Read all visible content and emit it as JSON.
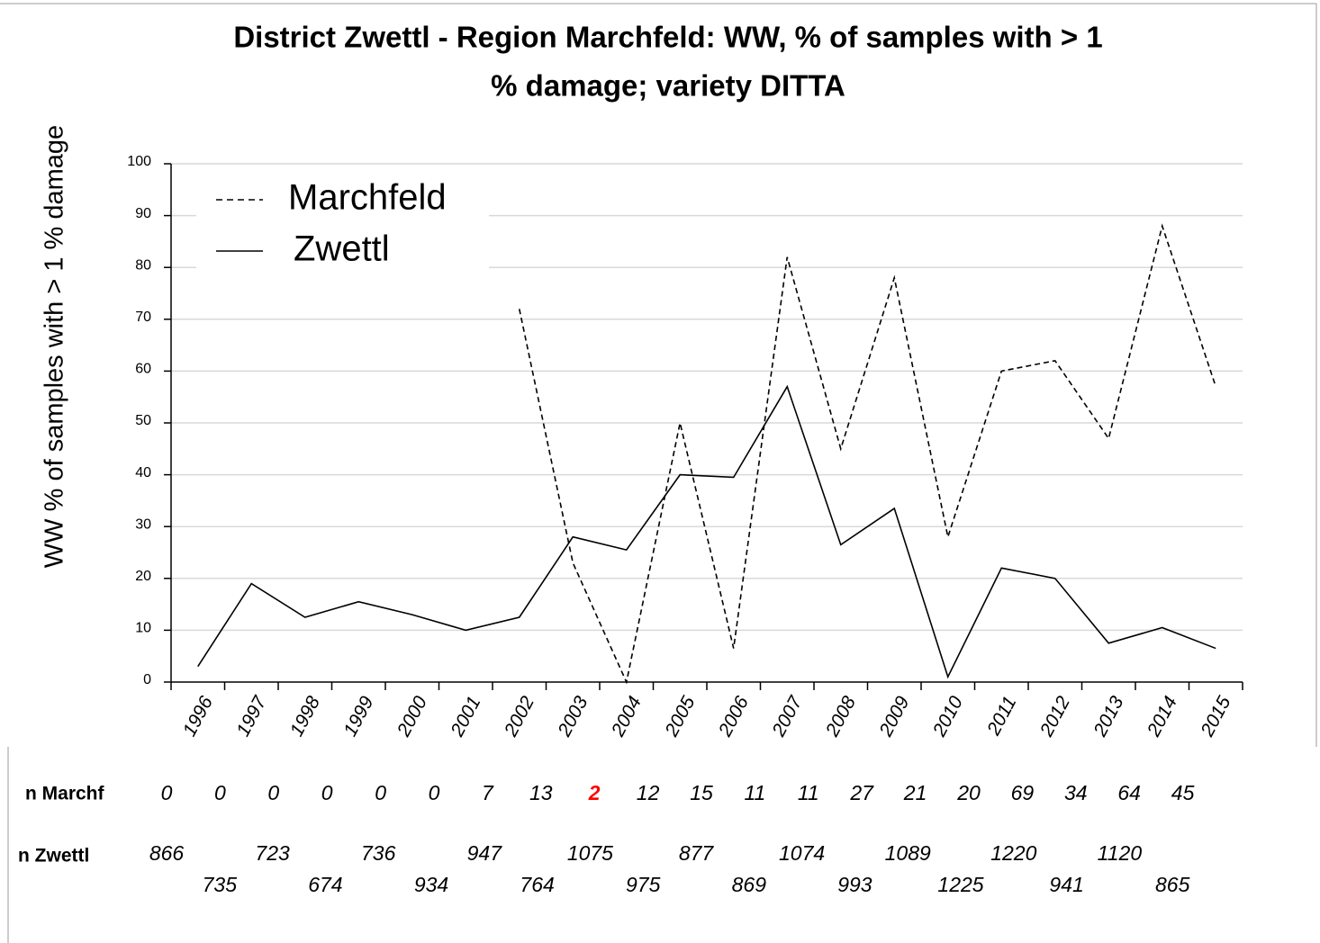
{
  "chart_data": {
    "type": "line",
    "title": [
      "District Zwettl - Region Marchfeld: WW, % of samples with > 1",
      "% damage; variety DITTA"
    ],
    "y_label": "WW % of samples with > 1  % damage",
    "categories": [
      "1996",
      "1997",
      "1998",
      "1999",
      "2000",
      "2001",
      "2002",
      "2003",
      "2004",
      "2005",
      "2006",
      "2007",
      "2008",
      "2009",
      "2010",
      "2011",
      "2012",
      "2013",
      "2014",
      "2015"
    ],
    "series": [
      {
        "name": "Marchfeld",
        "color": "#000000",
        "dash": true,
        "values": [
          null,
          null,
          null,
          null,
          null,
          null,
          72,
          23,
          0,
          50,
          6.5,
          82,
          45,
          78,
          28,
          60,
          62,
          47,
          88,
          57
        ]
      },
      {
        "name": "Zwettl",
        "color": "#000000",
        "dash": false,
        "values": [
          3,
          19,
          12.5,
          15.5,
          13,
          10,
          12.5,
          28,
          25.5,
          40,
          39.5,
          57,
          26.5,
          33.5,
          1,
          22,
          20,
          7.5,
          10.5,
          6.5
        ]
      }
    ],
    "ylim": [
      0,
      100
    ],
    "yticks": [
      0,
      10,
      20,
      30,
      40,
      50,
      60,
      70,
      80,
      90,
      100
    ],
    "grid": true,
    "legend": "upper left",
    "n_marchf": {
      "label": "n Marchf",
      "values": [
        0,
        0,
        0,
        0,
        0,
        0,
        7,
        13,
        2,
        12,
        15,
        11,
        11,
        27,
        21,
        20,
        69,
        34,
        64,
        45
      ],
      "colors": [
        "#000",
        "#000",
        "#000",
        "#000",
        "#000",
        "#000",
        "#000",
        "#000",
        "#ff0000",
        "#000",
        "#000",
        "#000",
        "#000",
        "#000",
        "#000",
        "#000",
        "#000",
        "#000",
        "#000",
        "#000"
      ]
    },
    "n_zwettl": {
      "label": "n Zwettl",
      "values": [
        866,
        735,
        723,
        674,
        736,
        934,
        947,
        764,
        1075,
        975,
        877,
        869,
        1074,
        993,
        1089,
        1225,
        1220,
        941,
        1120,
        865
      ]
    }
  }
}
